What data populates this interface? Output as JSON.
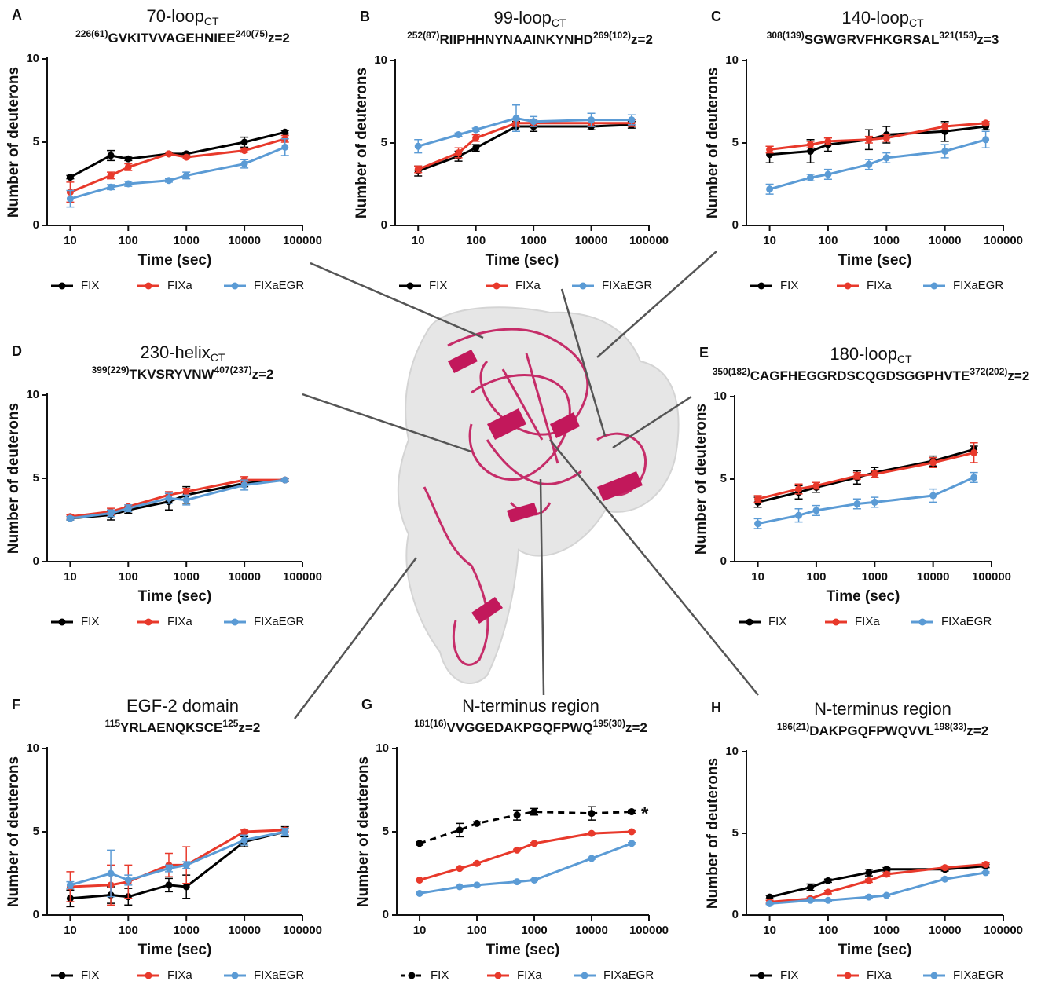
{
  "chart_data": [
    {
      "type": "line",
      "panel": "A",
      "title": "70-loop",
      "title_sub": "CT",
      "peptide": {
        "start": "226(61)",
        "sequence": "GVKITVVAGEHNIEE",
        "end": "240(75)",
        "charge": "z=2"
      },
      "x_label": "Time (sec)",
      "y_label": "Number of deuterons",
      "log_x": true,
      "xlim": [
        4,
        100000
      ],
      "xticks": [
        10,
        100,
        1000,
        10000,
        100000
      ],
      "ylim": [
        0,
        10
      ],
      "yticks": [
        0,
        5,
        10
      ],
      "x": [
        10,
        50,
        100,
        500,
        1000,
        10000,
        50000
      ],
      "series": [
        {
          "name": "FIX",
          "color": "#000000",
          "values": [
            2.9,
            4.2,
            4.0,
            4.3,
            4.3,
            5.0,
            5.6
          ],
          "errors": [
            0.1,
            0.3,
            0.1,
            0.1,
            0.1,
            0.3,
            0.1
          ]
        },
        {
          "name": "FIXa",
          "color": "#e8392b",
          "values": [
            2.0,
            3.0,
            3.5,
            4.3,
            4.1,
            4.5,
            5.2
          ],
          "errors": [
            0.6,
            0.2,
            0.2,
            0.1,
            0.1,
            0.1,
            0.2
          ]
        },
        {
          "name": "FIXaEGR",
          "color": "#5b9bd5",
          "values": [
            1.6,
            2.3,
            2.5,
            2.7,
            3.0,
            3.7,
            4.7
          ],
          "errors": [
            0.5,
            0.15,
            0.15,
            0.1,
            0.2,
            0.25,
            0.5
          ]
        }
      ]
    },
    {
      "type": "line",
      "panel": "B",
      "title": "99-loop",
      "title_sub": "CT",
      "peptide": {
        "start": "252(87)",
        "sequence": "RIIPHHNYNAAINKYNHD",
        "end": "269(102)",
        "charge": "z=2"
      },
      "x_label": "Time (sec)",
      "y_label": "Number of deuterons",
      "log_x": true,
      "xlim": [
        4,
        100000
      ],
      "xticks": [
        10,
        100,
        1000,
        10000,
        100000
      ],
      "ylim": [
        0,
        10
      ],
      "yticks": [
        0,
        5,
        10
      ],
      "x": [
        10,
        50,
        100,
        500,
        1000,
        10000,
        50000
      ],
      "series": [
        {
          "name": "FIX",
          "color": "#000000",
          "values": [
            3.3,
            4.2,
            4.7,
            6.0,
            6.0,
            6.0,
            6.1
          ],
          "errors": [
            0.3,
            0.3,
            0.2,
            0.3,
            0.3,
            0.2,
            0.2
          ]
        },
        {
          "name": "FIXa",
          "color": "#e8392b",
          "values": [
            3.4,
            4.4,
            5.3,
            6.2,
            6.2,
            6.2,
            6.2
          ],
          "errors": [
            0.2,
            0.3,
            0.2,
            0.2,
            0.2,
            0.2,
            0.2
          ]
        },
        {
          "name": "FIXaEGR",
          "color": "#5b9bd5",
          "values": [
            4.8,
            5.5,
            5.8,
            6.5,
            6.3,
            6.4,
            6.4
          ],
          "errors": [
            0.4,
            0.1,
            0.1,
            0.8,
            0.3,
            0.4,
            0.3
          ]
        }
      ]
    },
    {
      "type": "line",
      "panel": "C",
      "title": "140-loop",
      "title_sub": "CT",
      "peptide": {
        "start": "308(139)",
        "sequence": "SGWGRVFHKGRSAL",
        "end": "321(153)",
        "charge": "z=3"
      },
      "x_label": "Time (sec)",
      "y_label": "Number of deuterons",
      "log_x": true,
      "xlim": [
        4,
        100000
      ],
      "xticks": [
        10,
        100,
        1000,
        10000,
        100000
      ],
      "ylim": [
        0,
        10
      ],
      "yticks": [
        0,
        5,
        10
      ],
      "x": [
        10,
        50,
        100,
        500,
        1000,
        10000,
        50000
      ],
      "series": [
        {
          "name": "FIX",
          "color": "#000000",
          "values": [
            4.3,
            4.5,
            4.9,
            5.2,
            5.5,
            5.7,
            6.0
          ],
          "errors": [
            0.5,
            0.7,
            0.4,
            0.6,
            0.5,
            0.6,
            0.2
          ]
        },
        {
          "name": "FIXa",
          "color": "#e8392b",
          "values": [
            4.6,
            4.9,
            5.1,
            5.2,
            5.3,
            6.0,
            6.2
          ],
          "errors": [
            0.2,
            0.2,
            0.2,
            0.2,
            0.2,
            0.2,
            0.1
          ]
        },
        {
          "name": "FIXaEGR",
          "color": "#5b9bd5",
          "values": [
            2.2,
            2.9,
            3.1,
            3.7,
            4.1,
            4.5,
            5.2
          ],
          "errors": [
            0.3,
            0.2,
            0.3,
            0.3,
            0.3,
            0.4,
            0.5
          ]
        }
      ]
    },
    {
      "type": "line",
      "panel": "D",
      "title": "230-helix",
      "title_sub": "CT",
      "peptide": {
        "start": "399(229)",
        "sequence": "TKVSRYVNW",
        "end": "407(237)",
        "charge": "z=2"
      },
      "x_label": "Time (sec)",
      "y_label": "Number of deuterons",
      "log_x": true,
      "xlim": [
        4,
        100000
      ],
      "xticks": [
        10,
        100,
        1000,
        10000,
        100000
      ],
      "ylim": [
        0,
        10
      ],
      "yticks": [
        0,
        5,
        10
      ],
      "x": [
        10,
        50,
        100,
        500,
        1000,
        10000,
        50000
      ],
      "series": [
        {
          "name": "FIX",
          "color": "#000000",
          "values": [
            2.6,
            2.8,
            3.1,
            3.6,
            4.0,
            4.7,
            4.9
          ],
          "errors": [
            0.1,
            0.3,
            0.2,
            0.5,
            0.5,
            0.2,
            0.1
          ]
        },
        {
          "name": "FIXa",
          "color": "#e8392b",
          "values": [
            2.7,
            3.0,
            3.3,
            4.0,
            4.2,
            4.9,
            4.9
          ],
          "errors": [
            0.1,
            0.2,
            0.1,
            0.2,
            0.2,
            0.2,
            0.1
          ]
        },
        {
          "name": "FIXaEGR",
          "color": "#5b9bd5",
          "values": [
            2.6,
            2.9,
            3.2,
            3.8,
            3.7,
            4.6,
            4.9
          ],
          "errors": [
            0.1,
            0.2,
            0.2,
            0.3,
            0.3,
            0.3,
            0.1
          ]
        }
      ]
    },
    {
      "type": "line",
      "panel": "E",
      "title": "180-loop",
      "title_sub": "CT",
      "peptide": {
        "start": "350(182)",
        "sequence": "CAGFHEGGRDSCQGDSGGPHVTE",
        "end": "372(202)",
        "charge": "z=2"
      },
      "x_label": "Time (sec)",
      "y_label": "Number of deuterons",
      "log_x": true,
      "xlim": [
        4,
        100000
      ],
      "xticks": [
        10,
        100,
        1000,
        10000,
        100000
      ],
      "ylim": [
        0,
        10
      ],
      "yticks": [
        0,
        5,
        10
      ],
      "x": [
        10,
        50,
        100,
        500,
        1000,
        10000,
        50000
      ],
      "series": [
        {
          "name": "FIX",
          "color": "#000000",
          "values": [
            3.6,
            4.2,
            4.5,
            5.1,
            5.4,
            6.1,
            6.8
          ],
          "errors": [
            0.3,
            0.4,
            0.3,
            0.4,
            0.3,
            0.3,
            0.2
          ]
        },
        {
          "name": "FIXa",
          "color": "#e8392b",
          "values": [
            3.8,
            4.4,
            4.6,
            5.2,
            5.3,
            6.0,
            6.6
          ],
          "errors": [
            0.2,
            0.3,
            0.2,
            0.2,
            0.2,
            0.3,
            0.6
          ]
        },
        {
          "name": "FIXaEGR",
          "color": "#5b9bd5",
          "values": [
            2.3,
            2.8,
            3.1,
            3.5,
            3.6,
            4.0,
            5.1
          ],
          "errors": [
            0.3,
            0.4,
            0.3,
            0.3,
            0.3,
            0.4,
            0.3
          ]
        }
      ]
    },
    {
      "type": "line",
      "panel": "F",
      "title": "EGF-2 domain",
      "peptide": {
        "start": "115",
        "sequence": "YRLAENQKSCE",
        "end": "125",
        "charge": "z=2"
      },
      "x_label": "Time (sec)",
      "y_label": "Number of deuterons",
      "log_x": true,
      "xlim": [
        4,
        100000
      ],
      "xticks": [
        10,
        100,
        1000,
        10000,
        100000
      ],
      "ylim": [
        0,
        10
      ],
      "yticks": [
        0,
        5,
        10
      ],
      "x": [
        10,
        50,
        100,
        500,
        1000,
        10000,
        50000
      ],
      "series": [
        {
          "name": "FIX",
          "color": "#000000",
          "values": [
            1.0,
            1.2,
            1.1,
            1.8,
            1.7,
            4.4,
            5.0
          ],
          "errors": [
            0.5,
            0.5,
            0.5,
            0.4,
            0.7,
            0.3,
            0.3
          ]
        },
        {
          "name": "FIXa",
          "color": "#e8392b",
          "values": [
            1.7,
            1.8,
            2.0,
            3.0,
            3.0,
            5.0,
            5.1
          ],
          "errors": [
            0.9,
            1.2,
            1.0,
            0.7,
            1.1,
            0.1,
            0.1
          ]
        },
        {
          "name": "FIXaEGR",
          "color": "#5b9bd5",
          "values": [
            1.8,
            2.5,
            2.1,
            2.8,
            3.0,
            4.5,
            5.0
          ],
          "errors": [
            0.2,
            1.4,
            0.3,
            0.2,
            0.2,
            0.3,
            0.2
          ]
        }
      ]
    },
    {
      "type": "line",
      "panel": "G",
      "title": "N-terminus region",
      "peptide": {
        "start": "181(16)",
        "sequence": "VVGGEDAKPGQFPWQ",
        "end": "195(30)",
        "charge": "z=2"
      },
      "x_label": "Time (sec)",
      "y_label": "Number of deuterons",
      "log_x": true,
      "xlim": [
        4,
        100000
      ],
      "xticks": [
        10,
        100,
        1000,
        10000,
        100000
      ],
      "ylim": [
        0,
        10
      ],
      "yticks": [
        0,
        5,
        10
      ],
      "x": [
        10,
        50,
        100,
        500,
        1000,
        10000,
        50000
      ],
      "annotation": "*",
      "series": [
        {
          "name": "FIX",
          "color": "#000000",
          "dashed": true,
          "values": [
            4.3,
            5.1,
            5.5,
            6.0,
            6.2,
            6.1,
            6.2
          ],
          "errors": [
            0.1,
            0.4,
            0.1,
            0.3,
            0.2,
            0.4,
            0.1
          ]
        },
        {
          "name": "FIXa",
          "color": "#e8392b",
          "values": [
            2.1,
            2.8,
            3.1,
            3.9,
            4.3,
            4.9,
            5.0
          ],
          "errors": [
            0.05,
            0.05,
            0.05,
            0.05,
            0.05,
            0.05,
            0.05
          ]
        },
        {
          "name": "FIXaEGR",
          "color": "#5b9bd5",
          "values": [
            1.3,
            1.7,
            1.8,
            2.0,
            2.1,
            3.4,
            4.3
          ],
          "errors": [
            0.05,
            0.05,
            0.05,
            0.05,
            0.05,
            0.05,
            0.05
          ]
        }
      ]
    },
    {
      "type": "line",
      "panel": "H",
      "title": "N-terminus region",
      "peptide": {
        "start": "186(21)",
        "sequence": "DAKPGQFPWQVVL",
        "end": "198(33)",
        "charge": "z=2"
      },
      "x_label": "Time (sec)",
      "y_label": "Number of deuterons",
      "log_x": true,
      "xlim": [
        4,
        100000
      ],
      "xticks": [
        10,
        100,
        1000,
        10000,
        100000
      ],
      "ylim": [
        0,
        10
      ],
      "yticks": [
        0,
        5,
        10
      ],
      "x": [
        10,
        50,
        100,
        500,
        1000,
        10000,
        50000
      ],
      "series": [
        {
          "name": "FIX",
          "color": "#000000",
          "values": [
            1.1,
            1.7,
            2.1,
            2.6,
            2.8,
            2.8,
            3.0
          ],
          "errors": [
            0.1,
            0.2,
            0.1,
            0.2,
            0.1,
            0.1,
            0.1
          ]
        },
        {
          "name": "FIXa",
          "color": "#e8392b",
          "values": [
            0.8,
            1.0,
            1.4,
            2.1,
            2.5,
            2.9,
            3.1
          ],
          "errors": [
            0.1,
            0.1,
            0.1,
            0.1,
            0.1,
            0.1,
            0.1
          ]
        },
        {
          "name": "FIXaEGR",
          "color": "#5b9bd5",
          "values": [
            0.7,
            0.9,
            0.9,
            1.1,
            1.2,
            2.2,
            2.6
          ],
          "errors": [
            0.05,
            0.05,
            0.05,
            0.05,
            0.05,
            0.05,
            0.05
          ]
        }
      ]
    }
  ]
}
